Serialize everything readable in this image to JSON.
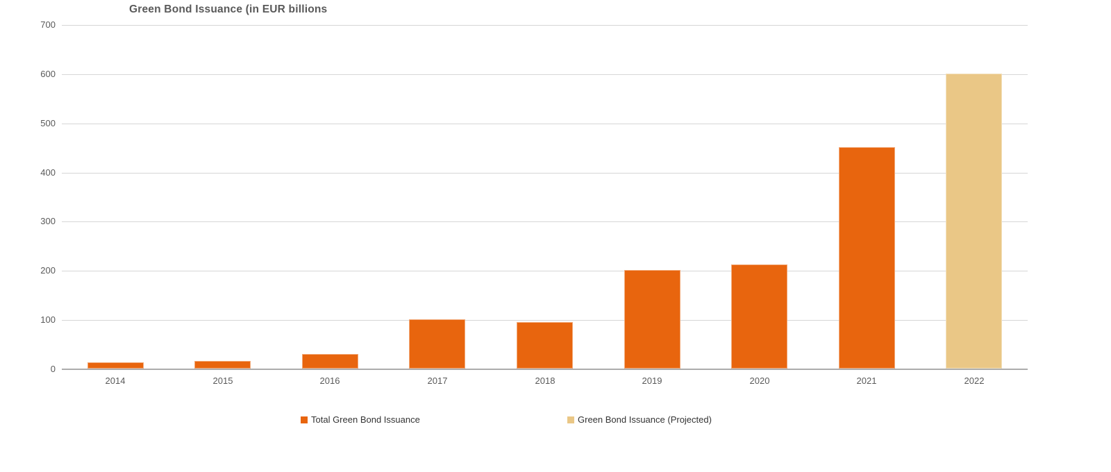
{
  "title": "Green Bond Issuance (in EUR billions",
  "chart_data": {
    "type": "bar",
    "title": "Green Bond Issuance (in EUR billions",
    "categories": [
      "2014",
      "2015",
      "2016",
      "2017",
      "2018",
      "2019",
      "2020",
      "2021",
      "2022"
    ],
    "series": [
      {
        "name": "Total Green Bond Issuance",
        "color": "#E8650E",
        "values": [
          12,
          15,
          30,
          100,
          95,
          200,
          212,
          450,
          null
        ]
      },
      {
        "name": "Green Bond Issuance (Projected)",
        "color": "#EAC786",
        "values": [
          null,
          null,
          null,
          null,
          null,
          null,
          null,
          null,
          600
        ]
      }
    ],
    "xlabel": "",
    "ylabel": "",
    "ylim": [
      0,
      700
    ],
    "yticks": [
      0,
      100,
      200,
      300,
      400,
      500,
      600,
      700
    ],
    "grid": true,
    "legend_position": "bottom"
  },
  "legend": {
    "items": [
      {
        "label": "Total Green Bond Issuance",
        "color": "#E8650E"
      },
      {
        "label": "Green Bond Issuance (Projected)",
        "color": "#EAC786"
      }
    ]
  },
  "colors": {
    "background": "#FFFFFF",
    "bar_actual": "#E8650E",
    "bar_projected": "#EAC786",
    "gridline": "#D6D6D6",
    "axis_line": "#ACACAC",
    "tick_label": "#595959",
    "title_text": "#595959",
    "legend_text": "#333333"
  }
}
